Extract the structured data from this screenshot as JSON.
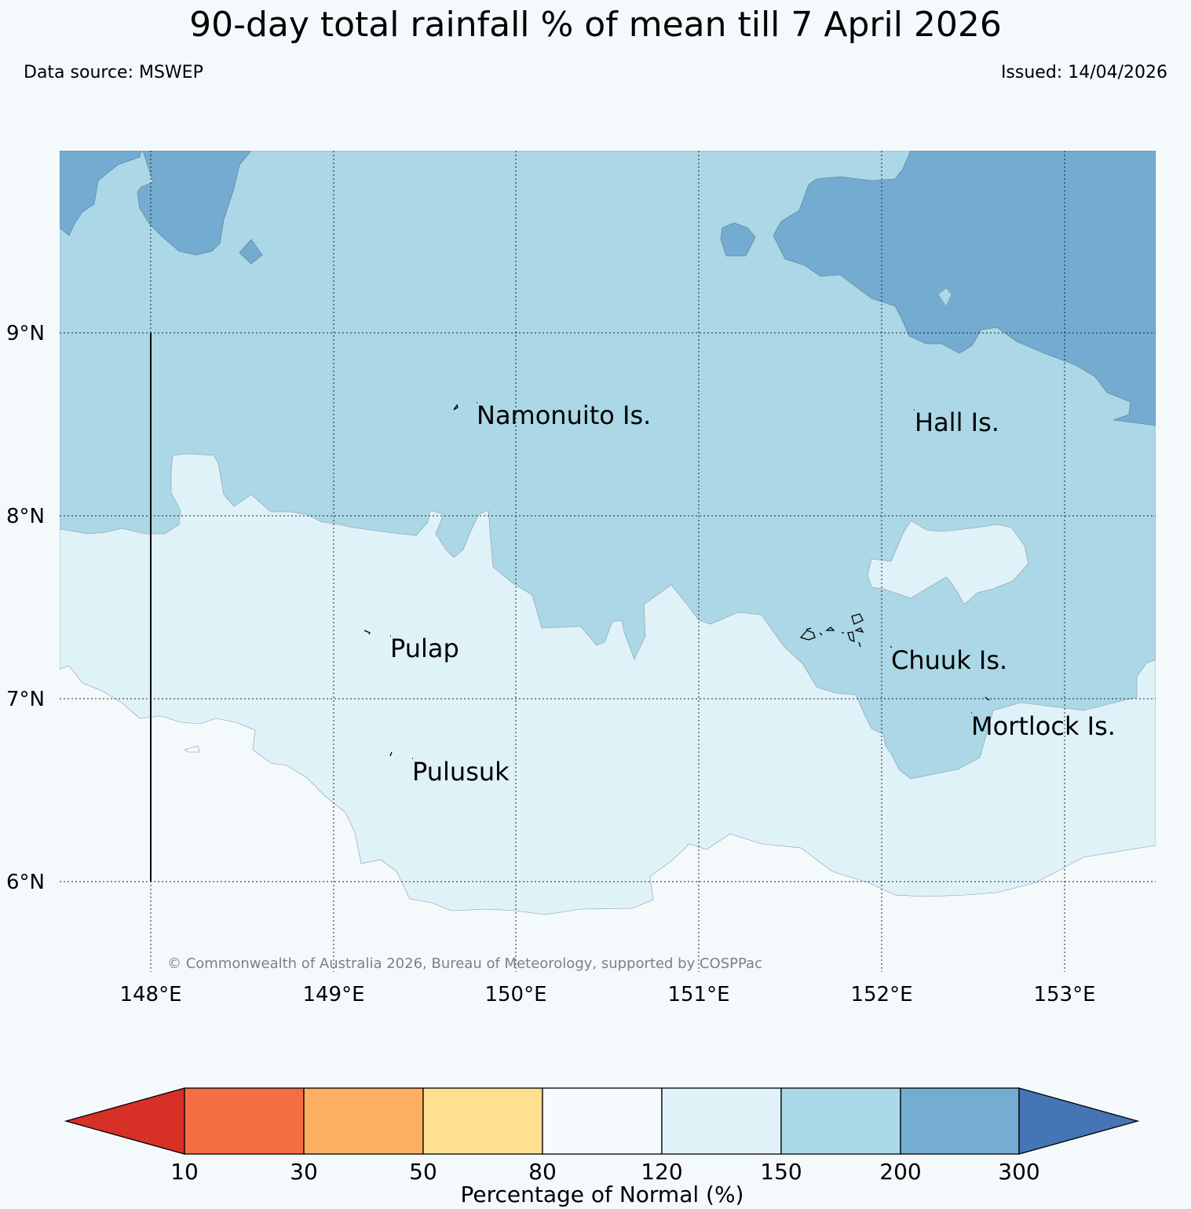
{
  "header": {
    "title": "90-day total rainfall % of mean till 7 April 2026",
    "source": "Data source: MSWEP",
    "issued": "Issued: 14/04/2026"
  },
  "map": {
    "lat_labels": [
      "9°N",
      "8°N",
      "7°N",
      "6°N"
    ],
    "lon_labels": [
      "148°E",
      "149°E",
      "150°E",
      "151°E",
      "152°E",
      "153°E"
    ],
    "places": [
      "Namonuito Is.",
      "Hall Is.",
      "Pulap",
      "Chuuk Is.",
      "Mortlock Is.",
      "Pulusuk"
    ],
    "copyright": "© Commonwealth of Australia 2026, Bureau of Meteorology, supported by COSPPac"
  },
  "colors": {
    "c80_120": "#f4f9fc",
    "c120_150": "#dff2f8",
    "c150_200": "#abd7e6",
    "c200_300": "#74abd0"
  },
  "legend": {
    "ticks": [
      "10",
      "30",
      "50",
      "80",
      "120",
      "150",
      "200",
      "300"
    ],
    "label": "Percentage of Normal (%)",
    "colors": [
      "#d73027",
      "#f46d43",
      "#fdae61",
      "#fee090",
      "#f7fbfd",
      "#e0f3f8",
      "#abd9e9",
      "#74add1",
      "#4575b4"
    ]
  }
}
